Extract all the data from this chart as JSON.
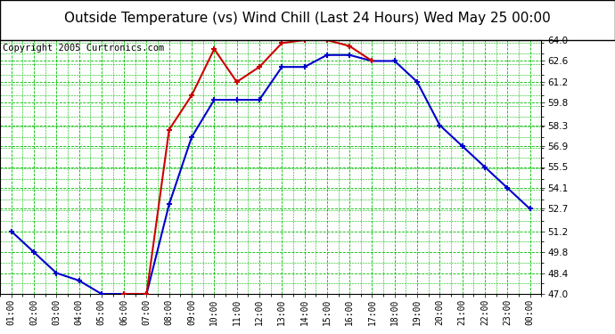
{
  "title": "Outside Temperature (vs) Wind Chill (Last 24 Hours) Wed May 25 00:00",
  "copyright": "Copyright 2005 Curtronics.com",
  "x_labels": [
    "01:00",
    "02:00",
    "03:00",
    "04:00",
    "05:00",
    "06:00",
    "07:00",
    "08:00",
    "09:00",
    "10:00",
    "11:00",
    "12:00",
    "13:00",
    "14:00",
    "15:00",
    "16:00",
    "17:00",
    "18:00",
    "19:00",
    "20:00",
    "21:00",
    "22:00",
    "23:00",
    "00:00"
  ],
  "ylim": [
    47.0,
    64.0
  ],
  "yticks": [
    47.0,
    48.4,
    49.8,
    51.2,
    52.7,
    54.1,
    55.5,
    56.9,
    58.3,
    59.8,
    61.2,
    62.6,
    64.0
  ],
  "blue_line": [
    51.2,
    49.8,
    48.4,
    47.9,
    47.0,
    47.0,
    47.0,
    53.0,
    57.5,
    60.0,
    60.0,
    60.0,
    62.2,
    62.2,
    63.0,
    63.0,
    62.6,
    62.6,
    61.2,
    58.3,
    56.9,
    55.5,
    54.1,
    52.7
  ],
  "red_line": [
    null,
    null,
    null,
    null,
    null,
    47.0,
    47.0,
    58.0,
    60.3,
    63.4,
    61.2,
    62.2,
    63.8,
    64.0,
    64.0,
    63.6,
    62.6,
    null,
    null,
    null,
    null,
    null,
    null,
    null
  ],
  "blue_color": "#0000cc",
  "red_color": "#cc0000",
  "bg_color": "#ffffff",
  "plot_bg_color": "#ffffff",
  "grid_color": "#00bb00",
  "border_color": "#000000",
  "title_fontsize": 11,
  "copyright_fontsize": 7.5
}
